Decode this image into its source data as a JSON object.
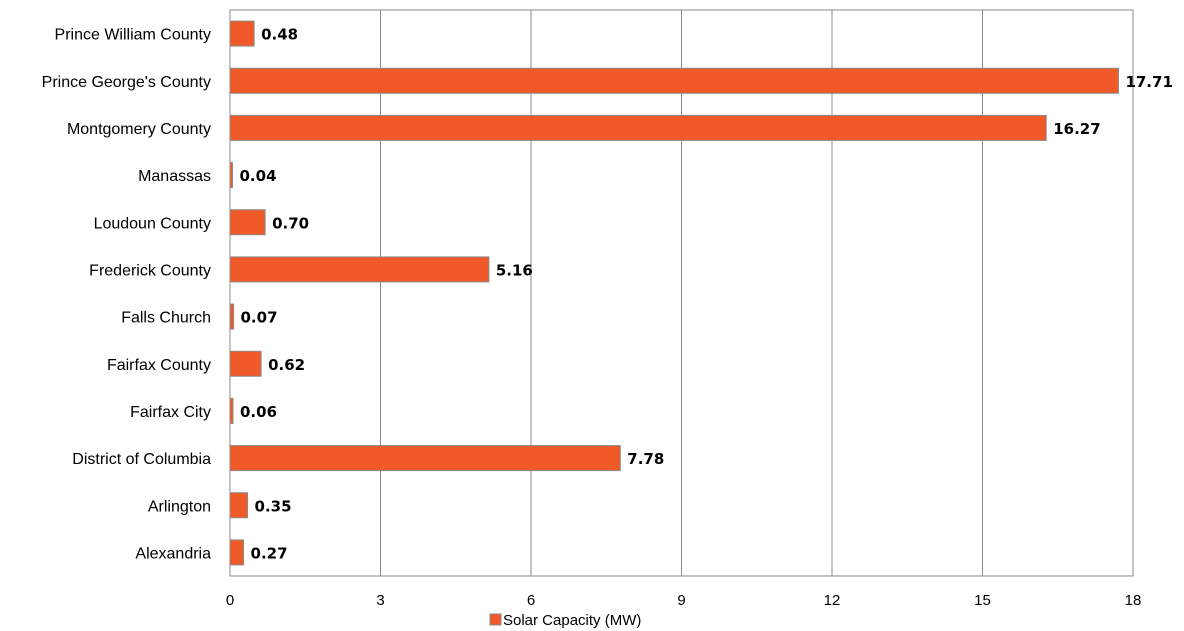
{
  "chart_data": {
    "type": "bar",
    "orientation": "horizontal",
    "categories": [
      "Prince William County",
      "Prince George's County",
      "Montgomery County",
      "Manassas",
      "Loudoun County",
      "Frederick County",
      "Falls Church",
      "Fairfax County",
      "Fairfax City",
      "District of Columbia",
      "Arlington",
      "Alexandria"
    ],
    "series": [
      {
        "name": "Solar Capacity (MW)",
        "values": [
          0.48,
          17.71,
          16.27,
          0.04,
          0.7,
          5.16,
          0.07,
          0.62,
          0.06,
          7.78,
          0.35,
          0.27
        ],
        "labels": [
          "0.48",
          "17.71",
          "16.27",
          "0.04",
          "0.70",
          "5.16",
          "0.07",
          "0.62",
          "0.06",
          "7.78",
          "0.35",
          "0.27"
        ]
      }
    ],
    "xlim": [
      0,
      18
    ],
    "xticks": [
      0,
      3,
      6,
      9,
      12,
      15,
      18
    ],
    "xtick_labels": [
      "0",
      "3",
      "6",
      "9",
      "12",
      "15",
      "18"
    ],
    "grid": "vertical",
    "legend_position": "bottom",
    "colors": {
      "bar": "#f05a28",
      "bar_edge": "#8a8a8a",
      "grid": "#8a8a8a"
    }
  }
}
